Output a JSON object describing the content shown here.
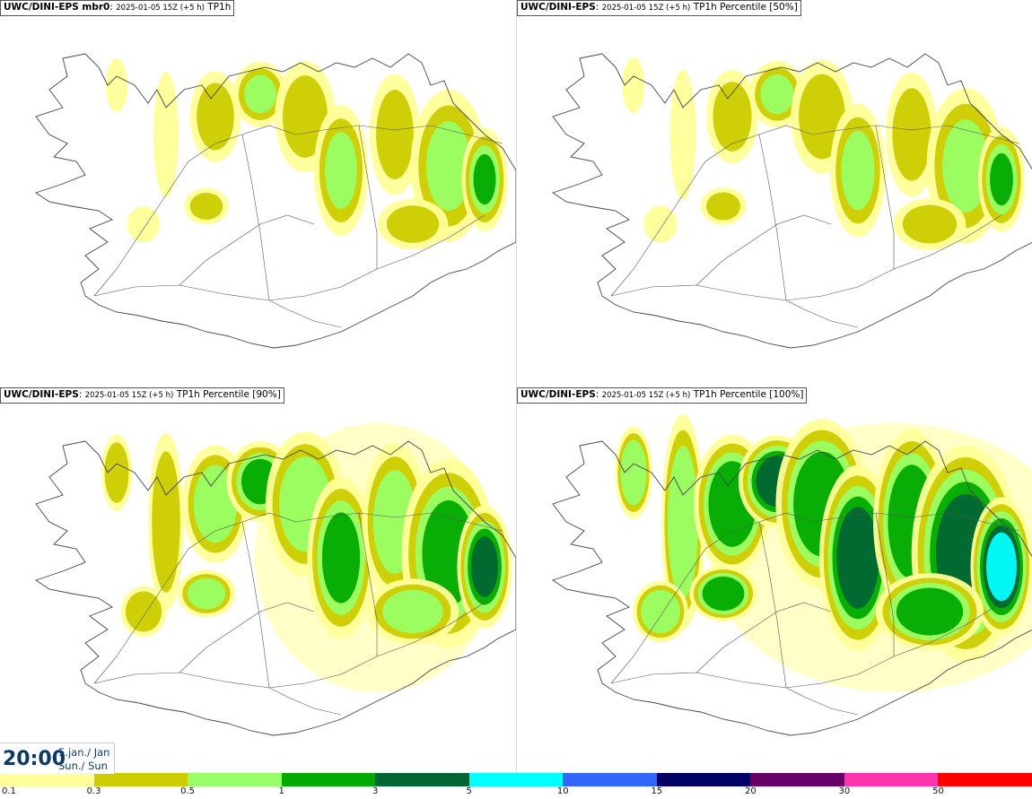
{
  "panels": [
    {
      "model": "UWC/DINI-EPS mbr0",
      "date": "2025-01-05 15Z (+5 h)",
      "variable": "TP1h",
      "intensity": 1
    },
    {
      "model": "UWC/DINI-EPS",
      "date": "2025-01-05 15Z (+5 h)",
      "variable": "TP1h Percentile [50%]",
      "intensity": 1.1
    },
    {
      "model": "UWC/DINI-EPS",
      "date": "2025-01-05 15Z (+5 h)",
      "variable": "TP1h Percentile [90%]",
      "intensity": 2
    },
    {
      "model": "UWC/DINI-EPS",
      "date": "2025-01-05 15Z (+5 h)",
      "variable": "TP1h Percentile [100%]",
      "intensity": 3
    }
  ],
  "valid_time": {
    "time": "20:00",
    "date_line1": "5.jan./ Jan",
    "date_line2": "Sun./ Sun"
  },
  "colorbar": {
    "colors": [
      "#ffff99",
      "#cccc00",
      "#99ff66",
      "#00aa00",
      "#006633",
      "#00ffff",
      "#3366ff",
      "#000066",
      "#660066",
      "#ff33aa",
      "#ff0000"
    ],
    "labels": [
      "0.1",
      "0.3",
      "0.5",
      "1",
      "3",
      "5",
      "10",
      "15",
      "20",
      "30",
      "50"
    ]
  }
}
